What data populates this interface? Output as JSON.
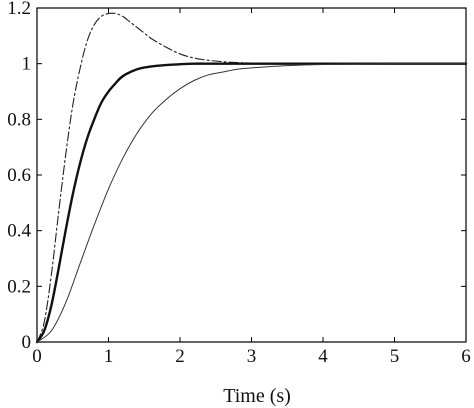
{
  "chart_data": {
    "type": "line",
    "title": "",
    "xlabel": "Time (s)",
    "ylabel": "",
    "xlim": [
      0,
      6
    ],
    "ylim": [
      0,
      1.2
    ],
    "x_ticks": [
      0,
      1,
      2,
      3,
      4,
      5,
      6
    ],
    "y_ticks": [
      0,
      0.2,
      0.4,
      0.6,
      0.8,
      1,
      1.2
    ],
    "x_tick_labels": [
      "0",
      "1",
      "2",
      "3",
      "4",
      "5",
      "6"
    ],
    "y_tick_labels": [
      "0",
      "0.2",
      "0.4",
      "0.6",
      "0.8",
      "1",
      "1.2"
    ],
    "grid": false,
    "legend": "none",
    "series": [
      {
        "line_style": "thin dash-dot",
        "color": "#222222",
        "x": [
          0,
          0.1,
          0.2,
          0.3,
          0.4,
          0.5,
          0.6,
          0.7,
          0.8,
          0.9,
          1.0,
          1.1,
          1.2,
          1.3,
          1.4,
          1.5,
          1.6,
          1.8,
          2.0,
          2.2,
          2.4,
          2.6,
          2.8,
          3.0,
          3.5,
          4.0,
          4.5,
          5.0,
          5.5,
          6.0
        ],
        "y": [
          0,
          0.07,
          0.24,
          0.46,
          0.67,
          0.85,
          0.98,
          1.08,
          1.14,
          1.17,
          1.18,
          1.18,
          1.17,
          1.15,
          1.13,
          1.11,
          1.09,
          1.06,
          1.035,
          1.02,
          1.012,
          1.007,
          1.004,
          1.002,
          1.0,
          1.0,
          1.0,
          1.0,
          1.0,
          1.0
        ]
      },
      {
        "line_style": "thick solid",
        "color": "#111111",
        "x": [
          0,
          0.1,
          0.2,
          0.3,
          0.4,
          0.5,
          0.6,
          0.7,
          0.8,
          0.9,
          1.0,
          1.1,
          1.2,
          1.4,
          1.6,
          1.8,
          2.0,
          2.2,
          2.5,
          3.0,
          3.5,
          4.0,
          5.0,
          6.0
        ],
        "y": [
          0,
          0.04,
          0.13,
          0.26,
          0.4,
          0.53,
          0.64,
          0.73,
          0.8,
          0.86,
          0.9,
          0.93,
          0.955,
          0.98,
          0.99,
          0.995,
          0.998,
          1.0,
          1.0,
          1.0,
          1.0,
          1.0,
          1.0,
          1.0
        ]
      },
      {
        "line_style": "thin solid",
        "color": "#333333",
        "x": [
          0,
          0.2,
          0.4,
          0.6,
          0.8,
          1.0,
          1.2,
          1.4,
          1.6,
          1.8,
          2.0,
          2.2,
          2.4,
          2.6,
          2.8,
          3.0,
          3.5,
          4.0,
          4.5,
          5.0,
          6.0
        ],
        "y": [
          0,
          0.04,
          0.14,
          0.28,
          0.42,
          0.55,
          0.66,
          0.75,
          0.82,
          0.87,
          0.91,
          0.94,
          0.96,
          0.97,
          0.98,
          0.985,
          0.993,
          0.997,
          0.999,
          1.0,
          1.0
        ]
      }
    ]
  }
}
